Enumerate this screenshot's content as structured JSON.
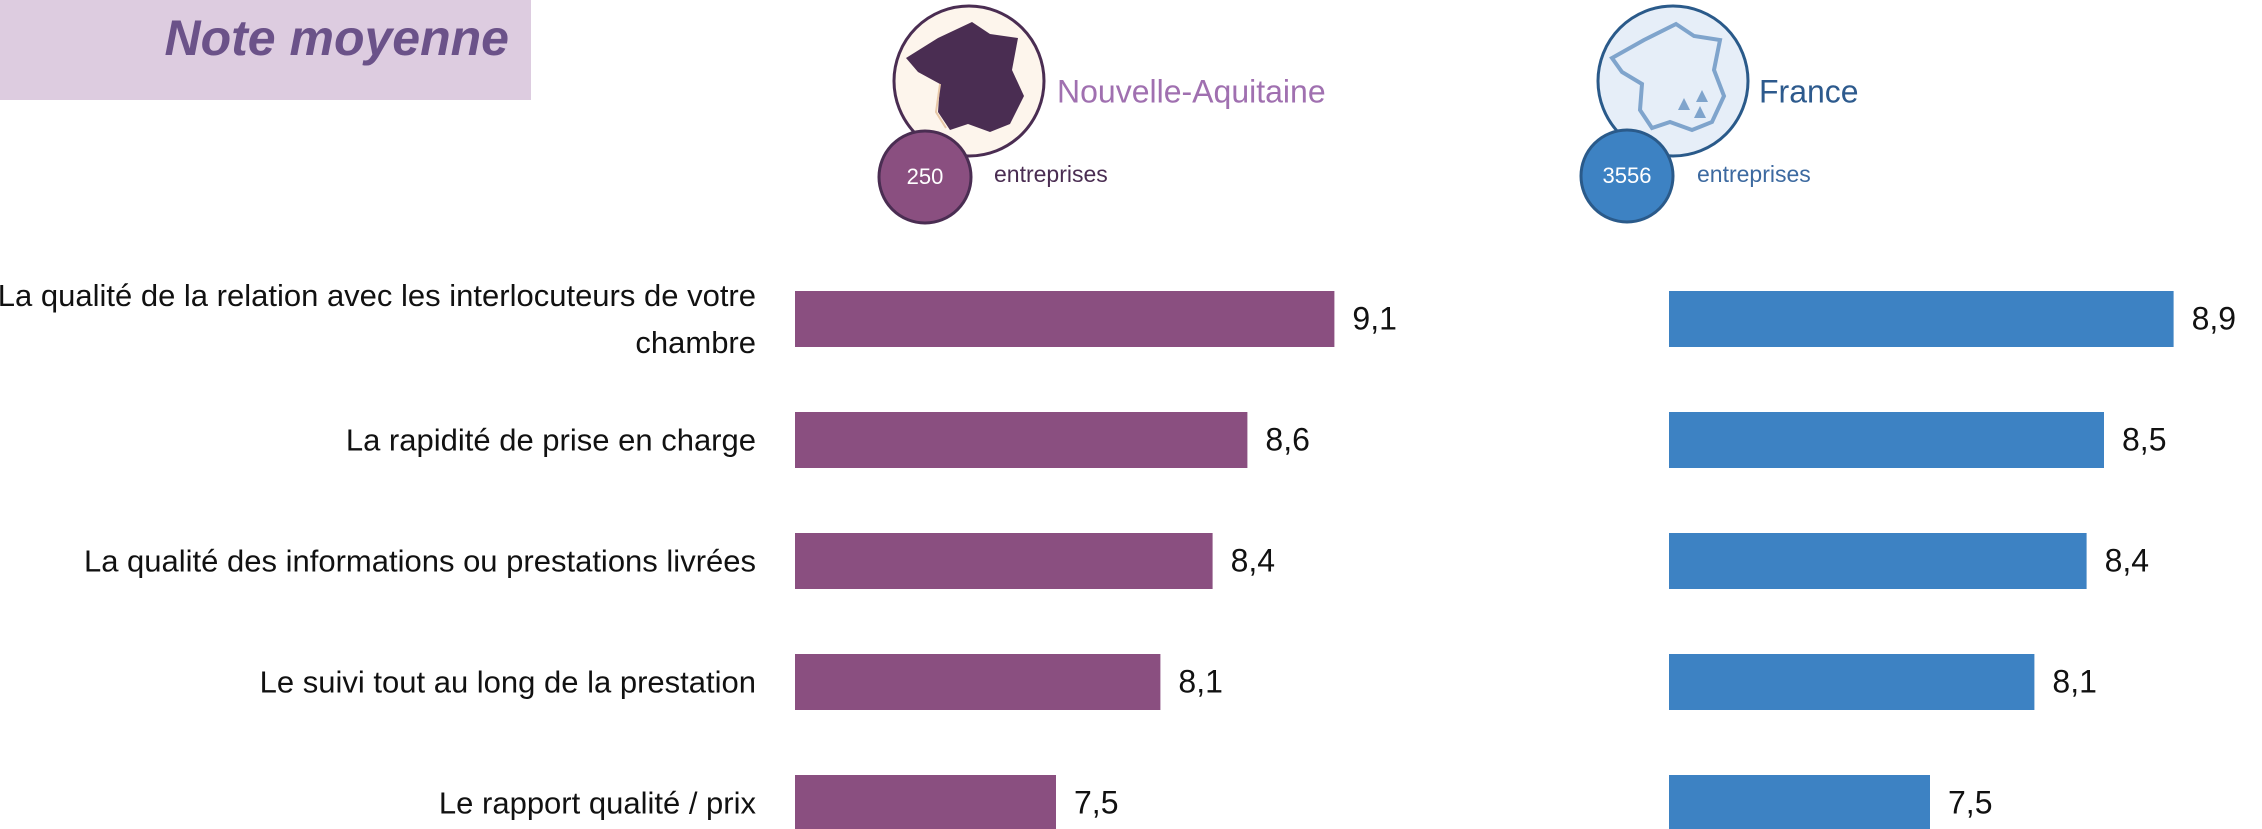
{
  "chart_data": {
    "type": "bar",
    "orientation": "horizontal",
    "title": "Note moyenne",
    "categories": [
      "La qualité de la relation avec les interlocuteurs de votre chambre",
      "La rapidité de prise en charge",
      "La qualité des informations ou prestations livrées",
      "Le suivi tout au long de la prestation",
      "Le rapport qualité / prix"
    ],
    "xlim": [
      6,
      10
    ],
    "series": [
      {
        "name": "Nouvelle-Aquitaine",
        "color": "#8a4f80",
        "count": 250,
        "unit": "entreprises",
        "values": [
          9.1,
          8.6,
          8.4,
          8.1,
          7.5
        ],
        "value_labels": [
          "9,1",
          "8,6",
          "8,4",
          "8,1",
          "7,5"
        ]
      },
      {
        "name": "France",
        "color": "#3d82c3",
        "count": 3556,
        "unit": "entreprises",
        "values": [
          8.9,
          8.5,
          8.4,
          8.1,
          7.5
        ],
        "value_labels": [
          "8,9",
          "8,5",
          "8,4",
          "8,1",
          "7,5"
        ]
      }
    ]
  }
}
